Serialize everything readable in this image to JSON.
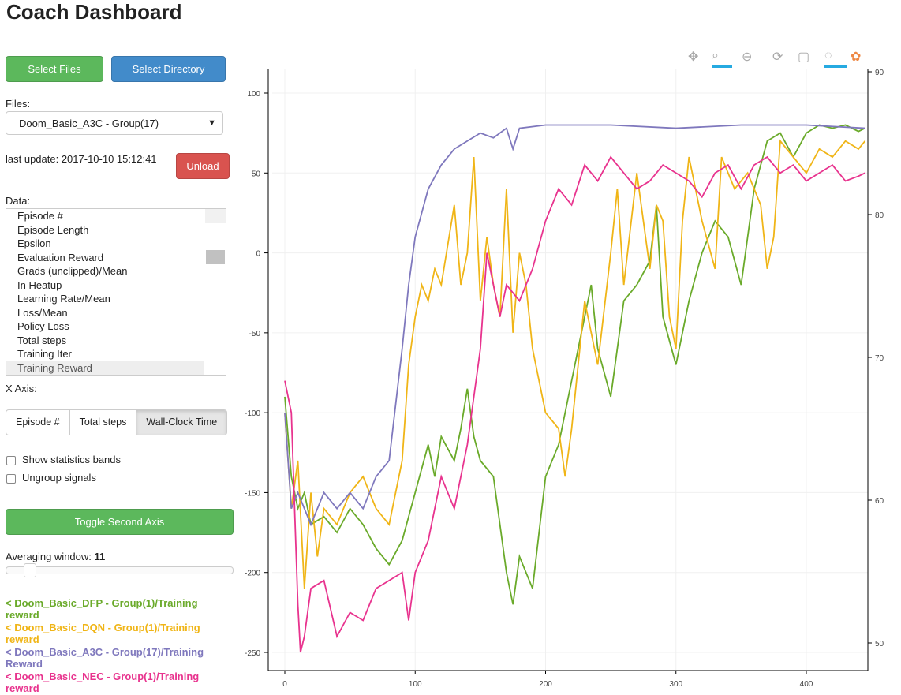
{
  "title": "Coach Dashboard",
  "buttons": {
    "select_files": "Select Files",
    "select_directory": "Select Directory",
    "unload": "Unload",
    "toggle_axis": "Toggle Second Axis"
  },
  "files": {
    "label": "Files:",
    "selected": "Doom_Basic_A3C - Group(17)"
  },
  "last_update": "last update: 2017-10-10 15:12:41",
  "data": {
    "label": "Data:",
    "items": [
      "Episode #",
      "Episode Length",
      "Epsilon",
      "Evaluation Reward",
      "Grads (unclipped)/Mean",
      "In Heatup",
      "Learning Rate/Mean",
      "Loss/Mean",
      "Policy Loss",
      "Total steps",
      "Training Iter",
      "Training Reward"
    ],
    "selected": "Training Reward"
  },
  "x_axis": {
    "label": "X Axis:",
    "options": [
      "Episode #",
      "Total steps",
      "Wall-Clock Time"
    ],
    "selected": "Wall-Clock Time"
  },
  "checkboxes": [
    {
      "label": "Show statistics bands",
      "checked": false
    },
    {
      "label": "Ungroup signals",
      "checked": false
    }
  ],
  "averaging": {
    "label": "Averaging window:",
    "value": "11"
  },
  "legend": [
    {
      "text": "< Doom_Basic_DFP - Group(1)/Training reward",
      "color": "#6aaa2a"
    },
    {
      "text": "< Doom_Basic_DQN - Group(1)/Training reward",
      "color": "#f0b517"
    },
    {
      "text": "< Doom_Basic_A3C - Group(17)/Training Reward",
      "color": "#7f78bd"
    },
    {
      "text": "< Doom_Basic_NEC - Group(1)/Training reward",
      "color": "#e8338e"
    }
  ],
  "toolbar": [
    "pan-icon",
    "box-zoom-icon",
    "wheel-zoom-icon",
    "reset-icon",
    "save-icon",
    "crosshair-icon",
    "bokeh-logo-icon"
  ],
  "chart_data": {
    "type": "line",
    "xlim": [
      -10,
      445
    ],
    "ylim": [
      -260,
      115
    ],
    "y2lim": [
      49,
      90.5
    ],
    "xticks": [
      0,
      100,
      200,
      300,
      400
    ],
    "yticks": [
      100,
      50,
      0,
      -50,
      -100,
      -150,
      -200,
      -250
    ],
    "y2ticks": [
      90,
      80,
      70,
      60,
      50
    ],
    "grid": true,
    "series": [
      {
        "name": "< Doom_Basic_DFP - Group(1)/Training reward",
        "color": "#6aaa2a",
        "points": [
          [
            0,
            -90
          ],
          [
            5,
            -140
          ],
          [
            10,
            -160
          ],
          [
            15,
            -150
          ],
          [
            20,
            -170
          ],
          [
            30,
            -165
          ],
          [
            40,
            -175
          ],
          [
            50,
            -160
          ],
          [
            60,
            -170
          ],
          [
            70,
            -185
          ],
          [
            80,
            -195
          ],
          [
            90,
            -180
          ],
          [
            100,
            -150
          ],
          [
            110,
            -120
          ],
          [
            115,
            -140
          ],
          [
            120,
            -115
          ],
          [
            130,
            -130
          ],
          [
            135,
            -110
          ],
          [
            140,
            -85
          ],
          [
            145,
            -115
          ],
          [
            150,
            -130
          ],
          [
            160,
            -140
          ],
          [
            170,
            -200
          ],
          [
            175,
            -220
          ],
          [
            180,
            -190
          ],
          [
            190,
            -210
          ],
          [
            195,
            -175
          ],
          [
            200,
            -140
          ],
          [
            210,
            -120
          ],
          [
            220,
            -80
          ],
          [
            230,
            -40
          ],
          [
            235,
            -20
          ],
          [
            240,
            -60
          ],
          [
            250,
            -90
          ],
          [
            255,
            -60
          ],
          [
            260,
            -30
          ],
          [
            270,
            -20
          ],
          [
            280,
            -5
          ],
          [
            285,
            30
          ],
          [
            290,
            -40
          ],
          [
            300,
            -70
          ],
          [
            305,
            -50
          ],
          [
            310,
            -30
          ],
          [
            320,
            0
          ],
          [
            330,
            20
          ],
          [
            340,
            10
          ],
          [
            350,
            -20
          ],
          [
            360,
            40
          ],
          [
            370,
            70
          ],
          [
            380,
            75
          ],
          [
            390,
            60
          ],
          [
            400,
            75
          ],
          [
            410,
            80
          ],
          [
            420,
            78
          ],
          [
            430,
            80
          ],
          [
            440,
            76
          ],
          [
            445,
            78
          ]
        ]
      },
      {
        "name": "< Doom_Basic_DQN - Group(1)/Training reward",
        "color": "#f0b517",
        "points": [
          [
            0,
            -100
          ],
          [
            5,
            -160
          ],
          [
            10,
            -130
          ],
          [
            15,
            -210
          ],
          [
            20,
            -150
          ],
          [
            25,
            -190
          ],
          [
            30,
            -160
          ],
          [
            40,
            -170
          ],
          [
            50,
            -150
          ],
          [
            60,
            -140
          ],
          [
            70,
            -160
          ],
          [
            80,
            -170
          ],
          [
            90,
            -130
          ],
          [
            95,
            -70
          ],
          [
            100,
            -40
          ],
          [
            105,
            -20
          ],
          [
            110,
            -30
          ],
          [
            115,
            -10
          ],
          [
            120,
            -20
          ],
          [
            130,
            30
          ],
          [
            135,
            -20
          ],
          [
            140,
            0
          ],
          [
            145,
            60
          ],
          [
            150,
            -30
          ],
          [
            155,
            10
          ],
          [
            160,
            -20
          ],
          [
            165,
            -40
          ],
          [
            170,
            40
          ],
          [
            175,
            -50
          ],
          [
            180,
            0
          ],
          [
            185,
            -20
          ],
          [
            190,
            -60
          ],
          [
            200,
            -100
          ],
          [
            210,
            -110
          ],
          [
            215,
            -140
          ],
          [
            220,
            -110
          ],
          [
            230,
            -30
          ],
          [
            240,
            -70
          ],
          [
            250,
            0
          ],
          [
            255,
            40
          ],
          [
            260,
            -20
          ],
          [
            270,
            50
          ],
          [
            275,
            20
          ],
          [
            280,
            -10
          ],
          [
            285,
            30
          ],
          [
            290,
            20
          ],
          [
            295,
            -40
          ],
          [
            300,
            -60
          ],
          [
            305,
            20
          ],
          [
            310,
            60
          ],
          [
            320,
            20
          ],
          [
            330,
            -10
          ],
          [
            335,
            60
          ],
          [
            345,
            40
          ],
          [
            355,
            50
          ],
          [
            365,
            30
          ],
          [
            370,
            -10
          ],
          [
            375,
            10
          ],
          [
            380,
            70
          ],
          [
            390,
            60
          ],
          [
            400,
            50
          ],
          [
            410,
            65
          ],
          [
            420,
            60
          ],
          [
            430,
            70
          ],
          [
            440,
            65
          ],
          [
            445,
            70
          ]
        ]
      },
      {
        "name": "< Doom_Basic_A3C - Group(17)/Training Reward",
        "color": "#7f78bd",
        "points": [
          [
            0,
            -100
          ],
          [
            5,
            -160
          ],
          [
            10,
            -150
          ],
          [
            20,
            -170
          ],
          [
            30,
            -150
          ],
          [
            40,
            -160
          ],
          [
            50,
            -150
          ],
          [
            60,
            -160
          ],
          [
            70,
            -140
          ],
          [
            80,
            -130
          ],
          [
            90,
            -60
          ],
          [
            95,
            -20
          ],
          [
            100,
            10
          ],
          [
            110,
            40
          ],
          [
            120,
            55
          ],
          [
            130,
            65
          ],
          [
            140,
            70
          ],
          [
            150,
            75
          ],
          [
            160,
            72
          ],
          [
            170,
            78
          ],
          [
            175,
            65
          ],
          [
            180,
            78
          ],
          [
            200,
            80
          ],
          [
            250,
            80
          ],
          [
            300,
            78
          ],
          [
            350,
            80
          ],
          [
            400,
            80
          ],
          [
            445,
            78
          ]
        ]
      },
      {
        "name": "< Doom_Basic_NEC - Group(1)/Training reward",
        "color": "#e8338e",
        "points": [
          [
            0,
            -80
          ],
          [
            5,
            -100
          ],
          [
            10,
            -220
          ],
          [
            12,
            -250
          ],
          [
            15,
            -240
          ],
          [
            20,
            -210
          ],
          [
            30,
            -205
          ],
          [
            40,
            -240
          ],
          [
            50,
            -225
          ],
          [
            60,
            -230
          ],
          [
            70,
            -210
          ],
          [
            80,
            -205
          ],
          [
            90,
            -200
          ],
          [
            95,
            -230
          ],
          [
            100,
            -200
          ],
          [
            110,
            -180
          ],
          [
            120,
            -140
          ],
          [
            130,
            -160
          ],
          [
            140,
            -120
          ],
          [
            150,
            -60
          ],
          [
            155,
            0
          ],
          [
            160,
            -20
          ],
          [
            165,
            -40
          ],
          [
            170,
            -20
          ],
          [
            180,
            -30
          ],
          [
            190,
            -10
          ],
          [
            200,
            20
          ],
          [
            210,
            40
          ],
          [
            220,
            30
          ],
          [
            230,
            55
          ],
          [
            240,
            45
          ],
          [
            250,
            60
          ],
          [
            260,
            50
          ],
          [
            270,
            40
          ],
          [
            280,
            45
          ],
          [
            290,
            55
          ],
          [
            300,
            50
          ],
          [
            310,
            45
          ],
          [
            320,
            35
          ],
          [
            330,
            50
          ],
          [
            340,
            55
          ],
          [
            350,
            40
          ],
          [
            360,
            55
          ],
          [
            370,
            60
          ],
          [
            380,
            50
          ],
          [
            390,
            55
          ],
          [
            400,
            45
          ],
          [
            410,
            50
          ],
          [
            420,
            55
          ],
          [
            430,
            45
          ],
          [
            440,
            48
          ],
          [
            445,
            50
          ]
        ]
      }
    ]
  }
}
